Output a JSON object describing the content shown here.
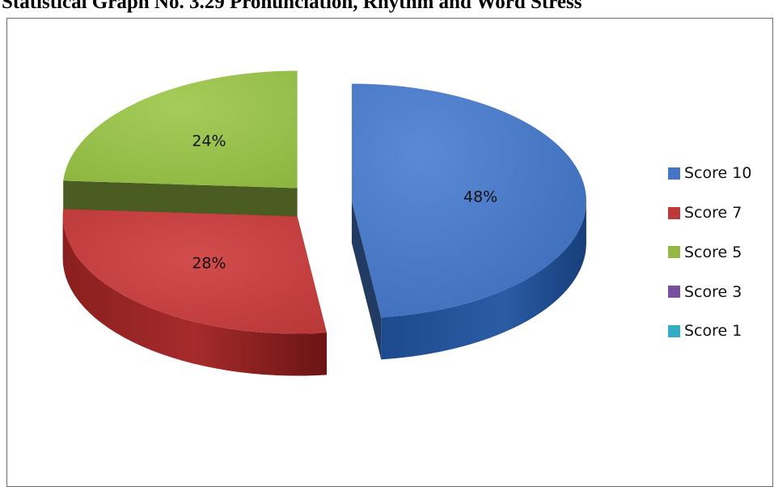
{
  "title": "Statistical Graph No. 3.29 Pronunciation, Rhythm and Word Stress",
  "chart_data": {
    "type": "pie",
    "style": "3d-exploded",
    "categories": [
      "Score 10",
      "Score 7",
      "Score 5",
      "Score 3",
      "Score 1"
    ],
    "values": [
      48,
      28,
      24,
      0,
      0
    ],
    "labels": [
      "48%",
      "28%",
      "24%",
      "",
      ""
    ],
    "colors": [
      "#4575c4",
      "#c0393a",
      "#93b843",
      "#7b4fa0",
      "#33acc6"
    ],
    "legend_position": "right"
  }
}
